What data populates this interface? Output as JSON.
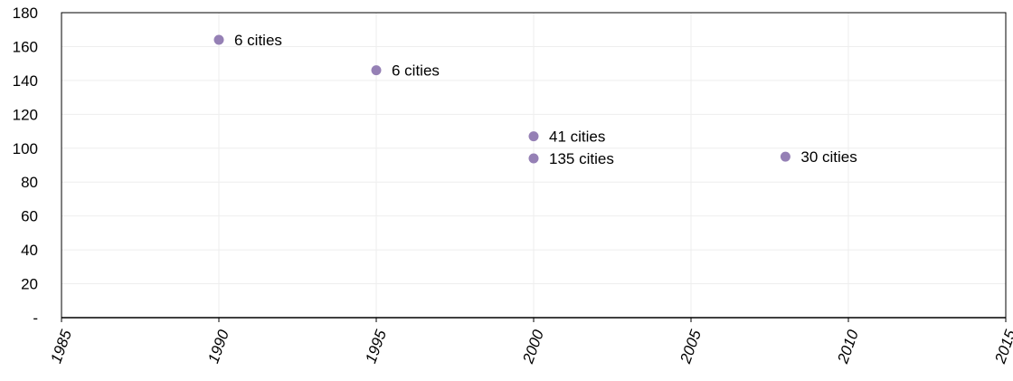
{
  "chart_data": {
    "type": "scatter",
    "title": "",
    "xlabel": "",
    "ylabel": "",
    "xlim": [
      1985,
      2015
    ],
    "ylim": [
      0,
      180
    ],
    "x_ticks": [
      1985,
      1990,
      1995,
      2000,
      2005,
      2010,
      2015
    ],
    "x_tick_labels": [
      "1985",
      "1990",
      "1995",
      "2000",
      "2005",
      "2010",
      "2015"
    ],
    "y_ticks": [
      0,
      20,
      40,
      60,
      80,
      100,
      120,
      140,
      160,
      180
    ],
    "y_tick_labels": [
      "-",
      "20",
      "40",
      "60",
      "80",
      "100",
      "120",
      "140",
      "160",
      "180"
    ],
    "grid": true,
    "legend": "none",
    "colors": {
      "marker": "#9580b5",
      "grid": "#eeeeee",
      "axis": "#000000"
    },
    "series": [
      {
        "points": [
          {
            "x": 1990,
            "y": 164,
            "label": "6 cities"
          },
          {
            "x": 1995,
            "y": 146,
            "label": "6 cities"
          },
          {
            "x": 2000,
            "y": 107,
            "label": "41 cities"
          },
          {
            "x": 2000,
            "y": 94,
            "label": "135 cities"
          },
          {
            "x": 2008,
            "y": 95,
            "label": "30 cities"
          }
        ]
      }
    ]
  }
}
